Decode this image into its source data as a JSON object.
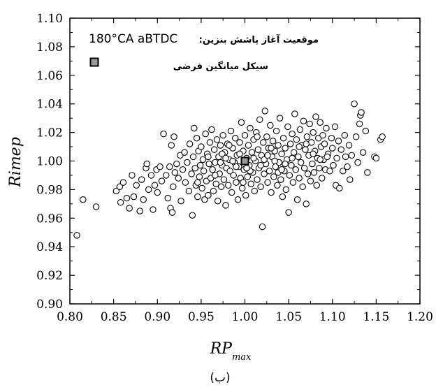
{
  "chart_data": {
    "type": "scatter",
    "xlabel": "RP",
    "xlabel_subscript": "max",
    "ylabel": "Rimep",
    "xlim": [
      0.8,
      1.2
    ],
    "ylim": [
      0.9,
      1.1
    ],
    "x_ticks": [
      "0.80",
      "0.85",
      "0.90",
      "0.95",
      "1.00",
      "1.05",
      "1.10",
      "1.15",
      "1.20"
    ],
    "y_ticks": [
      "0.90",
      "0.92",
      "0.94",
      "0.96",
      "0.98",
      "1.00",
      "1.02",
      "1.04",
      "1.06",
      "1.08",
      "1.10"
    ],
    "grid": false,
    "legend": {
      "placement": "top-left",
      "line1_ltr": "180°CA aBTDC",
      "line1_rtl": "موقعیت آغاز پاشش بنزین:",
      "marker_label": "سیکل میانگین فرضی"
    },
    "mean_point": {
      "x": 1.0,
      "y": 1.0
    },
    "caption": "(ب)",
    "points": [
      [
        0.808,
        0.948
      ],
      [
        0.815,
        0.973
      ],
      [
        0.83,
        0.968
      ],
      [
        0.853,
        0.979
      ],
      [
        0.857,
        0.982
      ],
      [
        0.858,
        0.971
      ],
      [
        0.861,
        0.985
      ],
      [
        0.865,
        0.974
      ],
      [
        0.868,
        0.967
      ],
      [
        0.871,
        0.99
      ],
      [
        0.873,
        0.975
      ],
      [
        0.876,
        0.983
      ],
      [
        0.88,
        0.965
      ],
      [
        0.882,
        0.987
      ],
      [
        0.884,
        0.973
      ],
      [
        0.887,
        0.995
      ],
      [
        0.888,
        0.998
      ],
      [
        0.89,
        0.98
      ],
      [
        0.893,
        0.99
      ],
      [
        0.895,
        0.966
      ],
      [
        0.897,
        0.983
      ],
      [
        0.899,
        0.994
      ],
      [
        0.9,
        0.978
      ],
      [
        0.903,
        0.996
      ],
      [
        0.905,
        0.986
      ],
      [
        0.907,
        1.019
      ],
      [
        0.91,
        0.99
      ],
      [
        0.912,
        0.974
      ],
      [
        0.914,
        0.996
      ],
      [
        0.915,
        0.967
      ],
      [
        0.916,
        1.011
      ],
      [
        0.917,
        0.964
      ],
      [
        0.918,
        0.982
      ],
      [
        0.919,
        1.017
      ],
      [
        0.92,
        0.992
      ],
      [
        0.922,
        0.998
      ],
      [
        0.924,
        0.988
      ],
      [
        0.926,
        1.004
      ],
      [
        0.927,
        0.972
      ],
      [
        0.929,
        0.994
      ],
      [
        0.931,
        1.006
      ],
      [
        0.932,
        0.985
      ],
      [
        0.934,
        0.999
      ],
      [
        0.936,
        0.979
      ],
      [
        0.937,
        1.012
      ],
      [
        0.939,
        0.991
      ],
      [
        0.94,
        0.962
      ],
      [
        0.941,
        1.003
      ],
      [
        0.942,
        1.023
      ],
      [
        0.943,
        0.995
      ],
      [
        0.944,
        0.983
      ],
      [
        0.945,
        1.016
      ],
      [
        0.946,
        0.975
      ],
      [
        0.947,
        1.007
      ],
      [
        0.948,
        0.989
      ],
      [
        0.949,
        0.997
      ],
      [
        0.95,
        1.01
      ],
      [
        0.951,
        0.981
      ],
      [
        0.952,
        1.001
      ],
      [
        0.953,
        0.993
      ],
      [
        0.954,
        0.973
      ],
      [
        0.955,
        1.019
      ],
      [
        0.956,
        0.986
      ],
      [
        0.957,
        1.005
      ],
      [
        0.958,
        0.976
      ],
      [
        0.959,
        0.998
      ],
      [
        0.96,
        1.013
      ],
      [
        0.961,
        0.988
      ],
      [
        0.962,
        1.022
      ],
      [
        0.963,
        0.994
      ],
      [
        0.964,
        0.979
      ],
      [
        0.965,
        1.008
      ],
      [
        0.966,
        0.999
      ],
      [
        0.967,
        0.984
      ],
      [
        0.968,
        1.015
      ],
      [
        0.969,
        0.972
      ],
      [
        0.97,
        1.003
      ],
      [
        0.971,
        0.991
      ],
      [
        0.972,
        1.011
      ],
      [
        0.973,
        0.982
      ],
      [
        0.974,
        0.997
      ],
      [
        0.975,
        1.018
      ],
      [
        0.976,
        0.987
      ],
      [
        0.977,
        1.006
      ],
      [
        0.978,
        0.969
      ],
      [
        0.979,
        0.995
      ],
      [
        0.98,
        1.012
      ],
      [
        0.981,
        0.983
      ],
      [
        0.982,
        1.001
      ],
      [
        0.983,
        0.993
      ],
      [
        0.984,
        1.021
      ],
      [
        0.985,
        0.978
      ],
      [
        0.986,
        1.009
      ],
      [
        0.987,
        0.99
      ],
      [
        0.988,
        0.999
      ],
      [
        0.989,
        1.016
      ],
      [
        0.99,
        0.985
      ],
      [
        0.991,
        1.004
      ],
      [
        0.992,
        0.973
      ],
      [
        0.993,
        0.996
      ],
      [
        0.994,
        1.013
      ],
      [
        0.995,
        0.988
      ],
      [
        0.996,
        1.027
      ],
      [
        0.997,
        0.981
      ],
      [
        0.998,
        1.007
      ],
      [
        0.999,
        0.994
      ],
      [
        1.0,
        1.018
      ],
      [
        1.001,
        0.976
      ],
      [
        1.002,
        1.002
      ],
      [
        1.003,
        0.989
      ],
      [
        1.004,
        1.011
      ],
      [
        1.005,
        0.997
      ],
      [
        1.006,
        1.023
      ],
      [
        1.007,
        0.984
      ],
      [
        1.008,
        1.006
      ],
      [
        1.009,
        0.992
      ],
      [
        1.01,
        1.015
      ],
      [
        1.011,
        0.979
      ],
      [
        1.012,
        1.0
      ],
      [
        1.013,
        1.02
      ],
      [
        1.014,
        0.987
      ],
      [
        1.015,
        1.008
      ],
      [
        1.016,
        0.995
      ],
      [
        1.017,
        1.029
      ],
      [
        1.018,
        0.982
      ],
      [
        1.019,
        1.004
      ],
      [
        1.02,
        0.954
      ],
      [
        1.021,
        1.013
      ],
      [
        1.022,
        0.991
      ],
      [
        1.023,
        1.035
      ],
      [
        1.024,
        0.998
      ],
      [
        1.025,
        1.017
      ],
      [
        1.026,
        0.985
      ],
      [
        1.027,
        1.009
      ],
      [
        1.028,
        0.993
      ],
      [
        1.029,
        1.025
      ],
      [
        1.03,
        0.978
      ],
      [
        1.031,
        1.003
      ],
      [
        1.032,
        1.014
      ],
      [
        1.033,
        0.989
      ],
      [
        1.034,
        1.007
      ],
      [
        1.035,
        0.996
      ],
      [
        1.036,
        1.021
      ],
      [
        1.037,
        0.983
      ],
      [
        1.038,
        1.011
      ],
      [
        1.039,
        0.999
      ],
      [
        1.04,
        1.03
      ],
      [
        1.041,
        0.987
      ],
      [
        1.042,
        1.005
      ],
      [
        1.043,
        0.975
      ],
      [
        1.044,
        1.016
      ],
      [
        1.045,
        0.993
      ],
      [
        1.046,
        1.009
      ],
      [
        1.047,
        0.98
      ],
      [
        1.048,
        1.001
      ],
      [
        1.049,
        1.024
      ],
      [
        1.05,
        0.964
      ],
      [
        1.051,
        0.99
      ],
      [
        1.052,
        1.012
      ],
      [
        1.053,
        0.997
      ],
      [
        1.054,
        1.019
      ],
      [
        1.055,
        0.985
      ],
      [
        1.056,
        1.006
      ],
      [
        1.057,
        1.033
      ],
      [
        1.058,
        0.994
      ],
      [
        1.059,
        1.015
      ],
      [
        1.06,
        0.973
      ],
      [
        1.061,
        1.003
      ],
      [
        1.062,
        0.988
      ],
      [
        1.063,
        1.022
      ],
      [
        1.064,
        0.999
      ],
      [
        1.065,
        1.011
      ],
      [
        1.066,
        0.982
      ],
      [
        1.067,
        1.028
      ],
      [
        1.068,
        0.995
      ],
      [
        1.069,
        1.008
      ],
      [
        1.07,
        0.97
      ],
      [
        1.071,
        1.017
      ],
      [
        1.072,
        0.991
      ],
      [
        1.073,
        1.004
      ],
      [
        1.074,
        1.026
      ],
      [
        1.075,
        0.986
      ],
      [
        1.076,
        1.013
      ],
      [
        1.077,
        0.998
      ],
      [
        1.078,
        1.02
      ],
      [
        1.079,
        0.992
      ],
      [
        1.08,
        1.007
      ],
      [
        1.081,
        1.031
      ],
      [
        1.082,
        0.983
      ],
      [
        1.083,
        1.002
      ],
      [
        1.084,
        1.016
      ],
      [
        1.085,
        0.995
      ],
      [
        1.086,
        1.027
      ],
      [
        1.087,
        1.01
      ],
      [
        1.088,
        0.988
      ],
      [
        1.089,
        1.018
      ],
      [
        1.09,
        1.001
      ],
      [
        1.091,
        1.012
      ],
      [
        1.092,
        0.994
      ],
      [
        1.093,
        1.023
      ],
      [
        1.095,
        1.005
      ],
      [
        1.097,
        0.993
      ],
      [
        1.099,
        1.016
      ],
      [
        1.1,
        1.009
      ],
      [
        1.101,
        0.997
      ],
      [
        1.103,
        1.024
      ],
      [
        1.104,
        0.983
      ],
      [
        1.105,
        1.002
      ],
      [
        1.107,
        1.014
      ],
      [
        1.108,
        0.981
      ],
      [
        1.11,
        1.008
      ],
      [
        1.112,
        0.993
      ],
      [
        1.114,
        1.018
      ],
      [
        1.115,
        1.003
      ],
      [
        1.117,
        0.996
      ],
      [
        1.119,
        1.011
      ],
      [
        1.12,
        0.987
      ],
      [
        1.122,
        1.004
      ],
      [
        1.125,
        1.04
      ],
      [
        1.127,
        1.017
      ],
      [
        1.129,
        0.999
      ],
      [
        1.131,
        1.026
      ],
      [
        1.132,
        1.032
      ],
      [
        1.133,
        1.034
      ],
      [
        1.135,
        1.006
      ],
      [
        1.138,
        1.021
      ],
      [
        1.14,
        0.992
      ],
      [
        1.148,
        1.003
      ],
      [
        1.15,
        1.002
      ],
      [
        1.155,
        1.015
      ],
      [
        1.157,
        1.017
      ],
      [
        0.946,
        0.985
      ],
      [
        0.958,
        1.003
      ],
      [
        0.966,
        0.99
      ],
      [
        0.974,
        1.005
      ],
      [
        0.982,
        1.011
      ],
      [
        0.99,
        0.996
      ],
      [
        0.998,
        0.985
      ],
      [
        1.006,
        0.993
      ],
      [
        1.014,
        1.017
      ],
      [
        1.022,
        1.001
      ],
      [
        1.03,
        1.009
      ],
      [
        1.038,
        0.992
      ],
      [
        1.046,
        0.998
      ],
      [
        1.054,
        1.002
      ],
      [
        1.062,
        1.01
      ],
      [
        1.07,
        1.012
      ],
      [
        1.078,
        1.005
      ],
      [
        1.086,
        1.001
      ],
      [
        1.094,
        1.003
      ],
      [
        0.972,
        0.999
      ],
      [
        0.978,
        1.002
      ],
      [
        0.986,
        1.0
      ],
      [
        0.994,
        1.005
      ],
      [
        1.002,
        0.995
      ],
      [
        1.01,
        1.002
      ],
      [
        1.018,
        0.997
      ],
      [
        1.026,
        1.004
      ],
      [
        1.034,
        1.0
      ],
      [
        1.042,
        0.994
      ]
    ]
  }
}
